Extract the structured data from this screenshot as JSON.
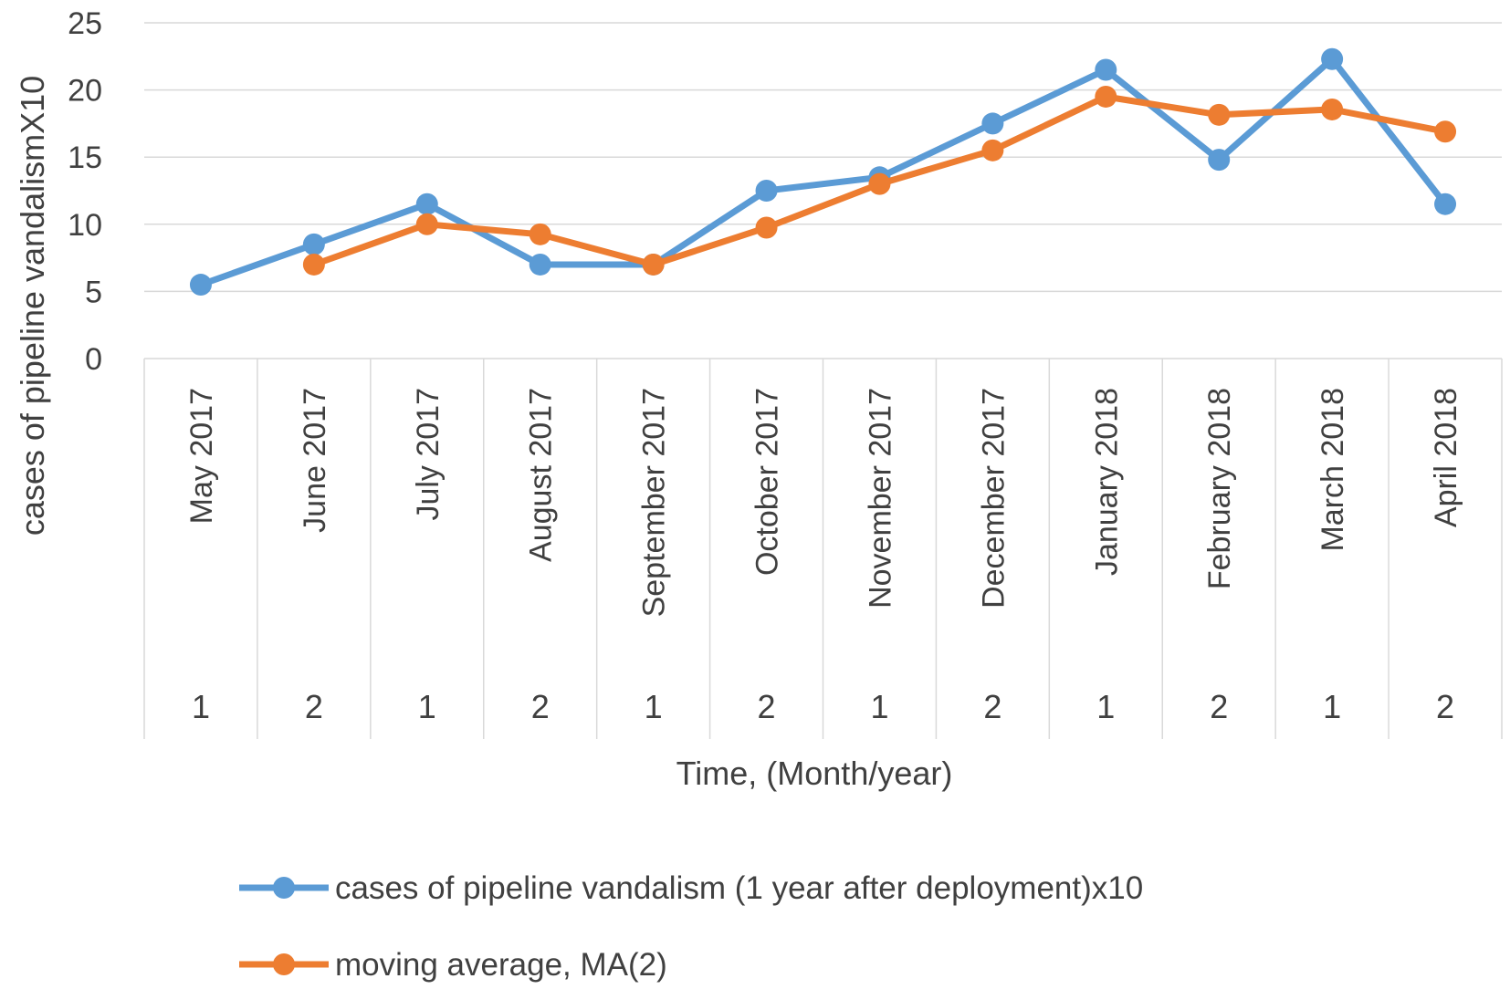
{
  "chart_data": {
    "type": "line",
    "title": "",
    "xlabel": "Time, (Month/year)",
    "ylabel": "cases of pipeline vandalismX10",
    "ylim": [
      0,
      25
    ],
    "yticks": [
      0,
      5,
      10,
      15,
      20,
      25
    ],
    "grid": true,
    "legend_position": "bottom",
    "categories": [
      "May 2017",
      "June 2017",
      "July 2017",
      "August 2017",
      "September 2017",
      "October 2017",
      "November 2017",
      "December 2017",
      "January 2018",
      "February 2018",
      "March 2018",
      "April 2018"
    ],
    "category_groups": [
      "1",
      "2",
      "1",
      "2",
      "1",
      "2",
      "1",
      "2",
      "1",
      "2",
      "1",
      "2"
    ],
    "series": [
      {
        "name": "cases of pipeline vandalism (1 year after deployment)x10",
        "color": "#5B9BD5",
        "values": [
          5.5,
          8.5,
          11.5,
          7.0,
          7.0,
          12.5,
          13.5,
          17.5,
          21.5,
          14.8,
          22.3,
          11.5
        ]
      },
      {
        "name": "moving average,  MA(2)",
        "color": "#ED7D31",
        "values": [
          null,
          7.0,
          10.0,
          9.25,
          7.0,
          9.75,
          13.0,
          15.5,
          19.5,
          18.15,
          18.55,
          16.9
        ]
      }
    ]
  }
}
